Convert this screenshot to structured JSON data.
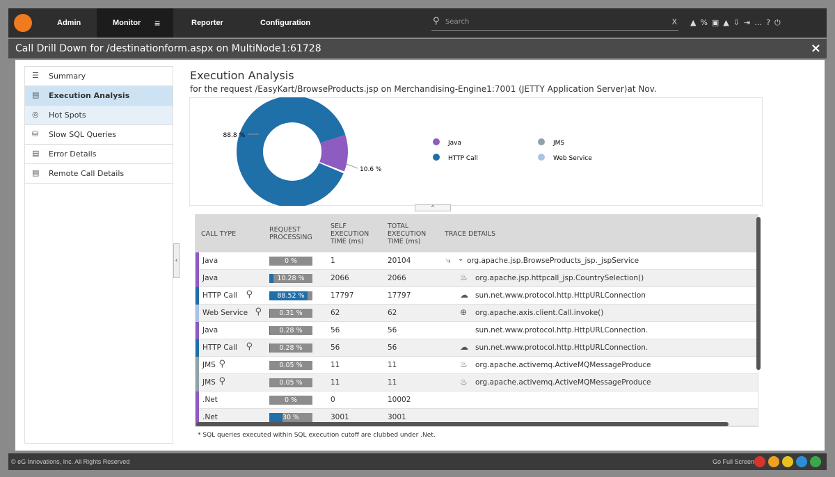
{
  "nav": {
    "items": [
      "Admin",
      "Monitor",
      "Reporter",
      "Configuration"
    ],
    "search_placeholder": "Search",
    "search_clear": "X"
  },
  "window": {
    "title": "Call Drill Down for /destinationform.aspx on MultiNode1:61728",
    "close": "×"
  },
  "sidebar": {
    "items": [
      "Summary",
      "Execution Analysis",
      "Hot Spots",
      "Slow SQL Queries",
      "Error Details",
      "Remote Call Details"
    ]
  },
  "heading": "Execution Analysis",
  "subheading": "for the request /EasyKart/BrowseProducts.jsp on Merchandising-Engine1:7001 (JETTY Application Server)at Nov.",
  "chart_data": {
    "type": "donut",
    "slices": [
      {
        "value": 88.8,
        "label": "88.8 %",
        "color": "#1f6fa8"
      },
      {
        "value": 10.6,
        "label": "10.6 %",
        "color": "#8e5bc0"
      }
    ],
    "legend": [
      {
        "name": "Java",
        "color": "#8e5bc0"
      },
      {
        "name": "HTTP Call",
        "color": "#1f6fa8"
      },
      {
        "name": "JMS",
        "color": "#8fa3a8"
      },
      {
        "name": "Web Service",
        "color": "#a9c4e6"
      }
    ]
  },
  "table": {
    "headers": [
      "CALL TYPE",
      "REQUEST PROCESSING",
      "SELF EXECUTION TIME (ms)",
      "TOTAL EXECUTION TIME (ms)",
      "TRACE DETAILS"
    ],
    "rows": [
      {
        "type": "Java",
        "color": "#8e5bc0",
        "pct": 0,
        "pct_label": "0 %",
        "self": "1",
        "total": "20104",
        "trace": "org.apache.jsp.BrowseProducts_jsp._jspService"
      },
      {
        "type": "Java",
        "color": "#8e5bc0",
        "pct": 10.28,
        "pct_label": "10.28 %",
        "self": "2066",
        "total": "2066",
        "trace": "org.apache.jsp.httpcall_jsp.CountrySelection()"
      },
      {
        "type": "HTTP Call",
        "color": "#1f6fa8",
        "pct": 88.52,
        "pct_label": "88.52 %",
        "self": "17797",
        "total": "17797",
        "trace": "sun.net.www.protocol.http.HttpURLConnection"
      },
      {
        "type": "Web Service",
        "color": "#a9c4e6",
        "pct": 0.31,
        "pct_label": "0.31 %",
        "self": "62",
        "total": "62",
        "trace": "org.apache.axis.client.Call.invoke()"
      },
      {
        "type": "Java",
        "color": "#8e5bc0",
        "pct": 0.28,
        "pct_label": "0.28 %",
        "self": "56",
        "total": "56",
        "trace": "sun.net.www.protocol.http.HttpURLConnection."
      },
      {
        "type": "HTTP Call",
        "color": "#1f6fa8",
        "pct": 0.28,
        "pct_label": "0.28 %",
        "self": "56",
        "total": "56",
        "trace": "sun.net.www.protocol.http.HttpURLConnection."
      },
      {
        "type": "JMS",
        "color": "#8fa3a8",
        "pct": 0.05,
        "pct_label": "0.05 %",
        "self": "11",
        "total": "11",
        "trace": "org.apache.activemq.ActiveMQMessageProduce"
      },
      {
        "type": "JMS",
        "color": "#8fa3a8",
        "pct": 0.05,
        "pct_label": "0.05 %",
        "self": "11",
        "total": "11",
        "trace": "org.apache.activemq.ActiveMQMessageProduce"
      },
      {
        "type": ".Net",
        "color": "#8e5bc0",
        "pct": 0,
        "pct_label": "0 %",
        "self": "0",
        "total": "10002",
        "trace": ""
      },
      {
        "type": ".Net",
        "color": "#8e5bc0",
        "pct": 30,
        "pct_label": "30 %",
        "self": "3001",
        "total": "3001",
        "trace": ""
      }
    ]
  },
  "footnote": "* SQL queries executed within SQL execution cutoff are clubbed under .Net.",
  "footer": {
    "copyright": "© eG Innovations, Inc. All Rights Reserved",
    "fullscreen": "Go Full Screen"
  }
}
